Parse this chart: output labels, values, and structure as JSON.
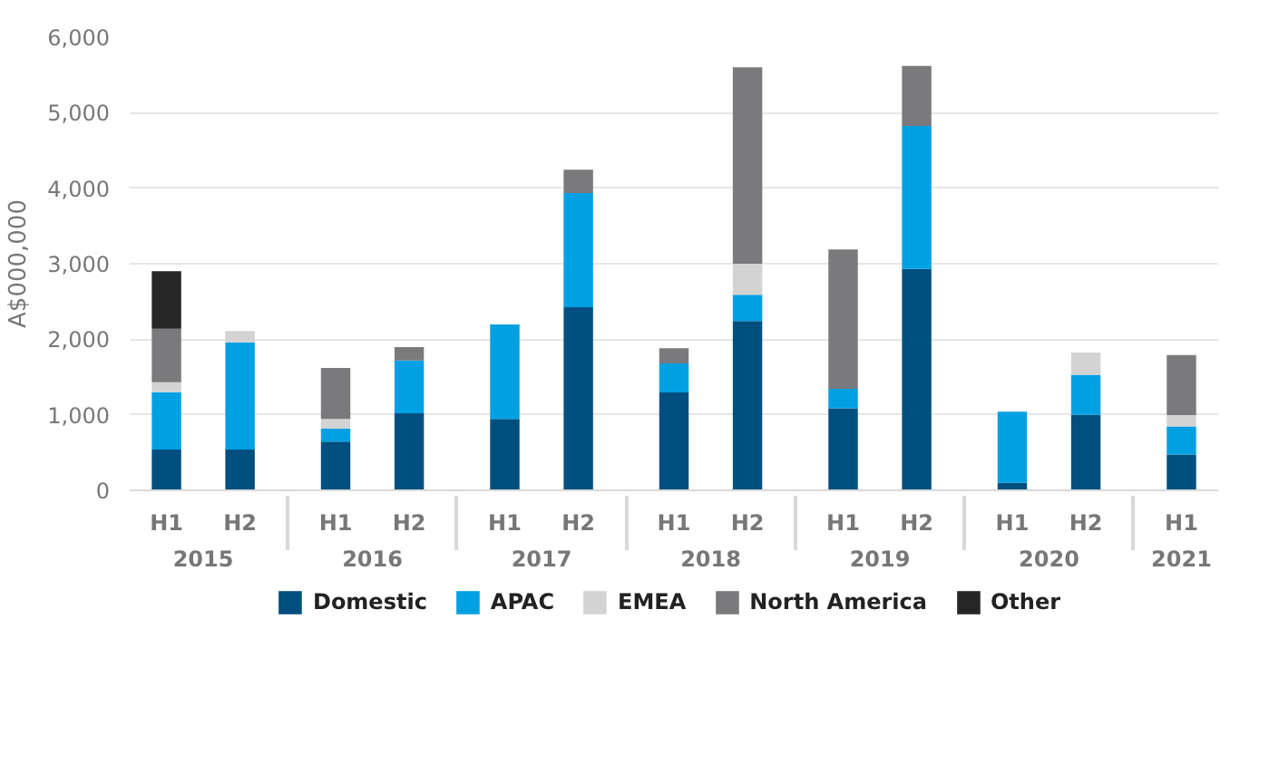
{
  "chart_data": {
    "type": "bar",
    "stacked": true,
    "ylabel": "A$000,000",
    "categories": [
      "H1",
      "H2",
      "H1",
      "H2",
      "H1",
      "H2",
      "H1",
      "H2",
      "H1",
      "H2",
      "H1",
      "H2",
      "H1"
    ],
    "annotations": [
      "2015",
      "2016",
      "2017",
      "2018",
      "2019",
      "2020",
      "2021"
    ],
    "series": [
      {
        "name": "Domestic",
        "color": "#004f7f",
        "values": [
          540,
          540,
          645,
          1020,
          945,
          2425,
          1295,
          2240,
          1085,
          2930,
          100,
          1000,
          475
        ]
      },
      {
        "name": "APAC",
        "color": "#00a0e3",
        "values": [
          760,
          1420,
          175,
          700,
          1250,
          1510,
          385,
          350,
          260,
          1895,
          940,
          530,
          370
        ]
      },
      {
        "name": "EMEA",
        "color": "#d3d3d3",
        "values": [
          130,
          150,
          125,
          0,
          0,
          0,
          0,
          410,
          0,
          0,
          0,
          295,
          150
        ]
      },
      {
        "name": "North America",
        "color": "#7a7a7c",
        "values": [
          710,
          0,
          675,
          175,
          0,
          310,
          200,
          2600,
          1845,
          795,
          0,
          0,
          795
        ]
      },
      {
        "name": "Other",
        "color": "#262626",
        "values": [
          760,
          0,
          0,
          0,
          0,
          0,
          0,
          0,
          0,
          0,
          0,
          0,
          0
        ]
      }
    ],
    "ylim": [
      0,
      6000
    ],
    "yticks": [
      0,
      {
        "value": 1000,
        "label": "1,000"
      },
      {
        "value": 2000,
        "label": "2,000"
      },
      {
        "value": 3000,
        "label": "3,000"
      },
      {
        "value": 4000,
        "label": "4,000"
      },
      {
        "value": 5000,
        "label": "5,000"
      },
      {
        "value": 6000,
        "label": "6,000"
      }
    ],
    "grid": "y",
    "legend": "bottom"
  }
}
